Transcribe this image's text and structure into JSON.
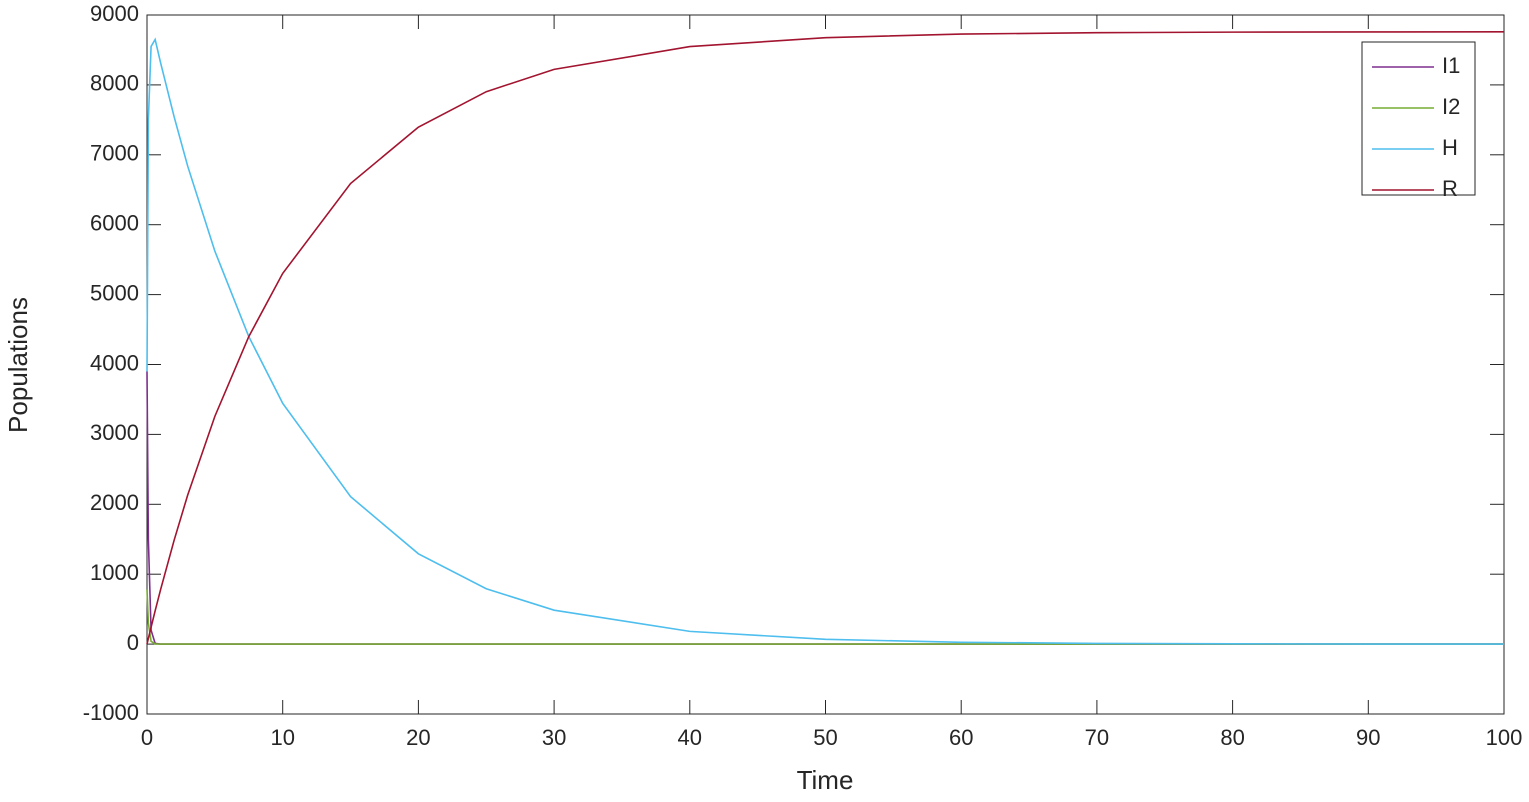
{
  "chart_data": {
    "type": "line",
    "x_label": "Time",
    "y_label": "Populations",
    "x": [
      0,
      0.1,
      0.3,
      0.6,
      1,
      2,
      3,
      5,
      7.5,
      10,
      15,
      20,
      25,
      30,
      40,
      50,
      60,
      70,
      80,
      90,
      100
    ],
    "series": [
      {
        "name": "I1",
        "color": "#7e2f8e",
        "values": [
          3900,
          1500,
          200,
          10,
          0,
          0,
          0,
          0,
          0,
          0,
          0,
          0,
          0,
          0,
          0,
          0,
          0,
          0,
          0,
          0,
          0
        ]
      },
      {
        "name": "I2",
        "color": "#77ac30",
        "values": [
          780,
          300,
          40,
          2,
          0,
          0,
          0,
          0,
          0,
          0,
          0,
          0,
          0,
          0,
          0,
          0,
          0,
          0,
          0,
          0,
          0
        ]
      },
      {
        "name": "H",
        "color": "#4dbeee",
        "values": [
          3900,
          7500,
          8550,
          8650,
          8318,
          7543,
          6837,
          5622,
          4400,
          3445,
          2110,
          1292,
          792,
          485,
          182,
          68,
          26,
          10,
          4,
          1,
          0
        ]
      },
      {
        "name": "R",
        "color": "#a2142f",
        "values": [
          0,
          81,
          241,
          476,
          778,
          1487,
          2133,
          3258,
          4399,
          5303,
          6589,
          7396,
          7903,
          8222,
          8548,
          8676,
          8727,
          8747,
          8755,
          8758,
          8759
        ]
      }
    ],
    "xlim": [
      0,
      100
    ],
    "xticks": [
      0,
      10,
      20,
      30,
      40,
      50,
      60,
      70,
      80,
      90,
      100
    ],
    "ylim": [
      -1000,
      9000
    ],
    "yticks": [
      -1000,
      0,
      1000,
      2000,
      3000,
      4000,
      5000,
      6000,
      7000,
      8000,
      9000
    ],
    "grid": false,
    "legend": "top-right"
  }
}
